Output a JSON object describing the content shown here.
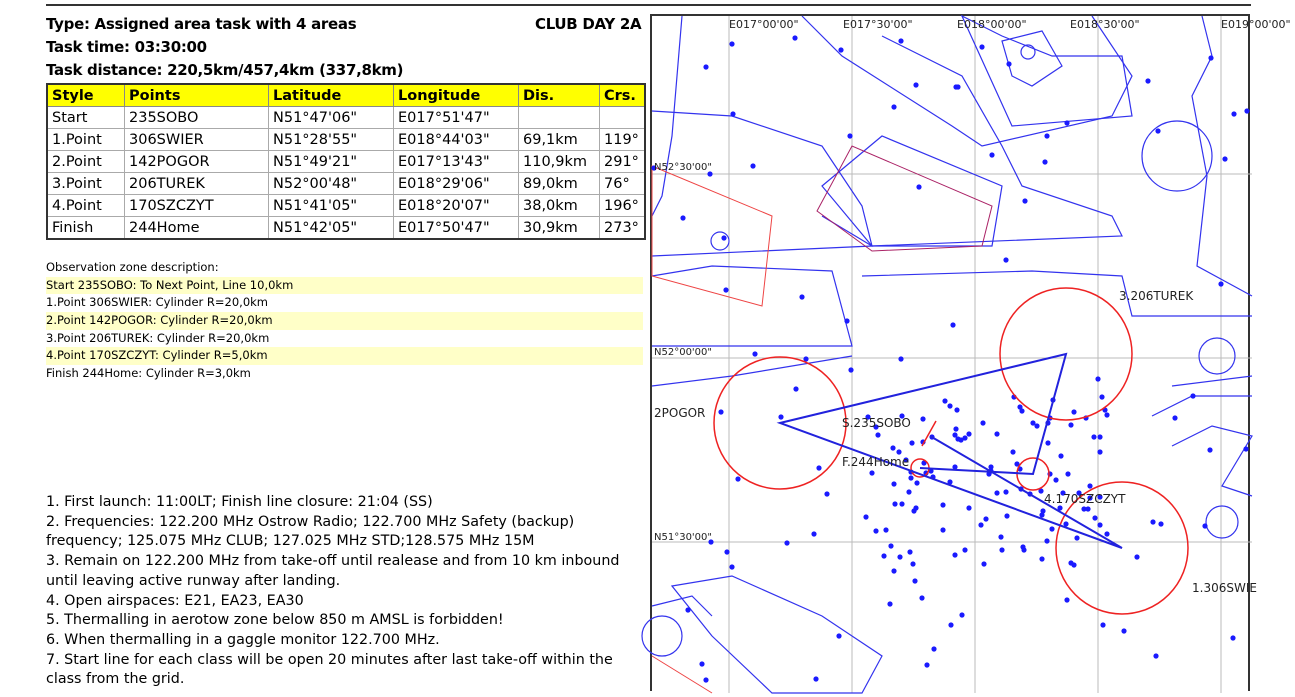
{
  "task": {
    "type": "Type: Assigned area task with 4 areas",
    "day": "CLUB DAY 2A",
    "time": "Task time: 03:30:00",
    "distance": "Task distance: 220,5km/457,4km (337,8km)"
  },
  "table": {
    "headers": [
      "Style",
      "Points",
      "Latitude",
      "Longitude",
      "Dis.",
      "Crs."
    ],
    "rows": [
      [
        "Start",
        "235SOBO",
        "N51°47'06\"",
        "E017°51'47\"",
        "",
        ""
      ],
      [
        "1.Point",
        "306SWIER",
        "N51°28'55\"",
        "E018°44'03\"",
        "69,1km",
        "119°"
      ],
      [
        "2.Point",
        "142POGOR",
        "N51°49'21\"",
        "E017°13'43\"",
        "110,9km",
        "291°"
      ],
      [
        "3.Point",
        "206TUREK",
        "N52°00'48\"",
        "E018°29'06\"",
        "89,0km",
        "76°"
      ],
      [
        "4.Point",
        "170SZCZYT",
        "N51°41'05\"",
        "E018°20'07\"",
        "38,0km",
        "196°"
      ],
      [
        "Finish",
        "244Home",
        "N51°42'05\"",
        "E017°50'47\"",
        "30,9km",
        "273°"
      ]
    ]
  },
  "observation_zones": {
    "title": "Observation zone description:",
    "items": [
      "Start 235SOBO: To Next Point, Line 10,0km",
      "1.Point 306SWIER: Cylinder R=20,0km",
      "2.Point 142POGOR: Cylinder R=20,0km",
      "3.Point 206TUREK: Cylinder R=20,0km",
      "4.Point 170SZCZYT: Cylinder R=5,0km",
      "Finish 244Home: Cylinder R=3,0km"
    ]
  },
  "notes": [
    "1. First launch: 11:00LT; Finish line closure: 21:04 (SS)",
    "2. Frequencies: 122.200 MHz Ostrow Radio; 122.700 MHz Safety (backup) frequency; 125.075 MHz CLUB; 127.025 MHz STD;128.575 MHz 15M",
    "3. Remain on 122.200 MHz from take-off until realease and from 10 km inbound until leaving active runway after landing.",
    "4. Open airspaces: E21, EA23, EA30",
    "5. Thermalling in aerotow zone below 850 m AMSL is forbidden!",
    "6. When thermalling in a gaggle monitor 122.700 MHz.",
    "7. Start line for each class will be open 20 minutes after last take-off within the class from the grid."
  ],
  "map": {
    "lon_labels": [
      "E017°00'00\"",
      "E017°30'00\"",
      "E018°00'00\"",
      "E018°30'00\"",
      "E019°00'00\""
    ],
    "lat_labels": [
      "N52°30'00\"",
      "N52°00'00\"",
      "N51°30'00\""
    ],
    "point_labels": [
      "S.235SOBO",
      "F.244Home",
      "1.306SWIE",
      "2POGOR",
      "3.206TUREK",
      "4.170SZCZYT"
    ],
    "colors": {
      "airspace": "#3333ee",
      "zone": "#ee2222",
      "waypoint": "#1a1aff",
      "grid": "#bbbbbb"
    }
  }
}
